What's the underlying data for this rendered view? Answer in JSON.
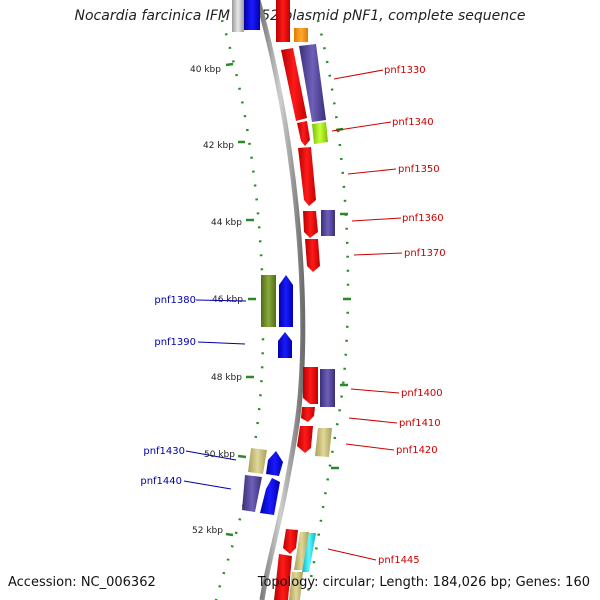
{
  "title": "Nocardia farcinica IFM 10152 plasmid pNF1, complete sequence",
  "accession": "Accession: NC_006362",
  "summary": "Topology: circular; Length: 184,026 bp; Genes: 160",
  "scale": {
    "labels": [
      "40 kbp",
      "42 kbp",
      "44 kbp",
      "46 kbp",
      "48 kbp",
      "50 kbp",
      "52 kbp"
    ]
  },
  "genes": {
    "pnf1330": "pnf1330",
    "pnf1340": "pnf1340",
    "pnf1350": "pnf1350",
    "pnf1360": "pnf1360",
    "pnf1370": "pnf1370",
    "pnf1380": "pnf1380",
    "pnf1390": "pnf1390",
    "pnf1400": "pnf1400",
    "pnf1410": "pnf1410",
    "pnf1420": "pnf1420",
    "pnf1430": "pnf1430",
    "pnf1440": "pnf1440",
    "pnf1445": "pnf1445"
  },
  "colors": {
    "forward_label": "#cc0000",
    "reverse_label": "#0000aa",
    "red_gene": "#ff0000",
    "blue_gene": "#0000ee",
    "purple_cog": "#4a3d8f",
    "olive_cog": "#6b8e23",
    "khaki_cog": "#c8c07a",
    "tick": "#2a8a2a",
    "backbone": "#888888"
  }
}
